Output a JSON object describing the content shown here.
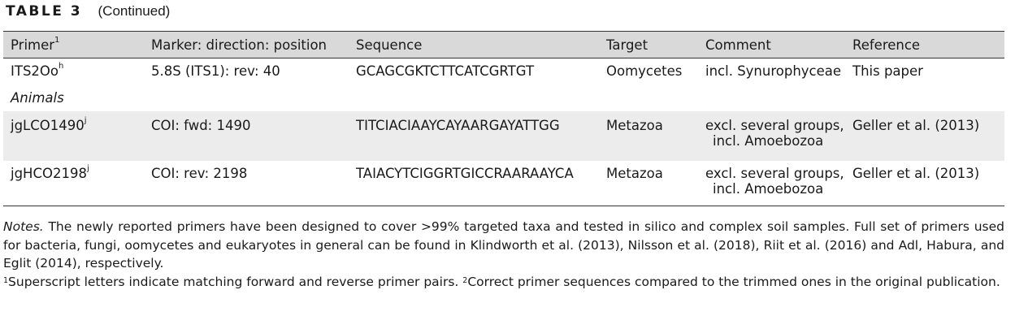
{
  "caption": {
    "label": "TABLE 3",
    "continued": "(Continued)"
  },
  "table": {
    "headers": [
      {
        "text": "Primer",
        "sup": "1"
      },
      {
        "text": "Marker: direction: position"
      },
      {
        "text": "Sequence"
      },
      {
        "text": "Target"
      },
      {
        "text": "Comment"
      },
      {
        "text": "Reference"
      }
    ],
    "rows": [
      {
        "primer": "ITS2Oo",
        "primer_sup": "h",
        "marker": "5.8S (ITS1): rev: 40",
        "sequence": "GCAGCGKTCTTCATCGRTGT",
        "target": "Oomycetes",
        "comment_line1": "incl. Synurophyceae",
        "comment_line2": "",
        "reference": "This paper"
      },
      {
        "primer": "jgLCO1490",
        "primer_sup": "j",
        "marker": "COI: fwd: 1490",
        "sequence": "TITCIACIAAYCAYAARGAYATTGG",
        "target": "Metazoa",
        "comment_line1": "excl. several groups,",
        "comment_line2": "incl. Amoebozoa",
        "reference": "Geller et al. (2013)"
      },
      {
        "primer": "jgHCO2198",
        "primer_sup": "j",
        "marker": "COI: rev: 2198",
        "sequence": "TAIACYTCIGGRTGICCRAARAAYCA",
        "target": "Metazoa",
        "comment_line1": "excl. several groups,",
        "comment_line2": "incl. Amoebozoa",
        "reference": "Geller et al. (2013)"
      }
    ],
    "section_animals": "Animals"
  },
  "notes": {
    "label": "Notes.",
    "text": "The newly reported primers have been designed to cover >99% targeted taxa and tested in silico and complex soil samples. Full set of primers used for bacteria, fungi, oomycetes and eukaryotes in general can be found in Klindworth et al. (2013), Nilsson et al. (2018), Riit et al. (2016) and Adl, Habura, and Eglit (2014), respectively.",
    "footnote1_sup": "1",
    "footnote1": "Superscript letters indicate matching forward and reverse primer pairs.",
    "footnote2_sup": "2",
    "footnote2": "Correct primer sequences compared to the trimmed ones in the original publication."
  }
}
